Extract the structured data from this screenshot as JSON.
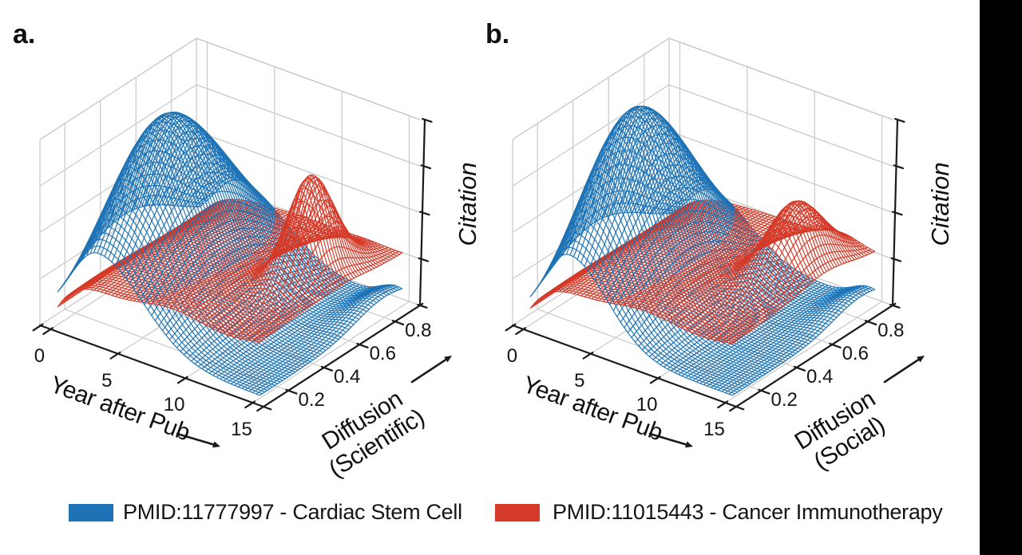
{
  "chart_data": {
    "type": "3d_wireframe_surface",
    "description": "Two 3D wireframe surface panels showing citation count versus year after publication and knowledge diffusion, for two papers (blue and red). Panel a uses scientific diffusion, panel b uses social diffusion. Z axis (Citation) has unlabeled ticks.",
    "legend_position": "bottom",
    "panels": [
      {
        "panel_label": "a.",
        "x_axis": {
          "label": "Year after Pub",
          "tick_labels": [
            "0",
            "5",
            "10",
            "15"
          ],
          "tick_values": [
            0,
            5,
            10,
            15
          ],
          "range": [
            -0.8,
            15.8
          ]
        },
        "y_axis": {
          "label_line1": "Diffusion",
          "label_line2": "(Scientific)",
          "tick_labels": [
            "0.2",
            "0.4",
            "0.6",
            "0.8"
          ],
          "tick_values": [
            0.2,
            0.4,
            0.6,
            0.8
          ],
          "range": [
            0.06,
            0.94
          ]
        },
        "z_axis": {
          "label": "Citation",
          "n_ticks": 5,
          "normalized_range": [
            0,
            1
          ]
        },
        "surfaces": [
          {
            "series": "PMID:11777997 - Cardiac Stem Cell",
            "color_key": "blue",
            "peak_summary": "large smooth peak, height ~0.97 of axis, at year ~3-4 and diffusion ~0.47, broad shoulder decaying toward year 15; small bump ~0.10 near year 14.5, diffusion 0.8",
            "model": {
              "base": 0.015,
              "main": {
                "amp": 0.96,
                "t0": 3.0,
                "sigL": 2.1,
                "sigR": 3.3,
                "d0": 0.47,
                "sigD": 0.3
              },
              "bump": {
                "amp": 0.1,
                "t0": 14.6,
                "sigT": 1.2,
                "d0": 0.8,
                "sigD": 0.16
              }
            }
          },
          {
            "series": "PMID:11015443 - Cancer Immunotherapy",
            "color_key": "red",
            "peak_summary": "low plateau ~0.28 across the domain rising from zero near year 0, with a sharp narrow peak to ~0.8 at year ~12.4, diffusion ~0.58",
            "model": {
              "plateau": {
                "height": 0.27,
                "rise": 1.6,
                "domeAmp": 0.18,
                "domeD": 0.45,
                "domeSig": 0.3,
                "waveAmp": 0.06
              },
              "peak": {
                "amp": 0.5,
                "t0": 12.4,
                "sigT": 1.0,
                "d0": 0.58,
                "sigD": 0.11
              }
            }
          }
        ]
      },
      {
        "panel_label": "b.",
        "x_axis": {
          "label": "Year after Pub",
          "tick_labels": [
            "0",
            "5",
            "10",
            "15"
          ],
          "tick_values": [
            0,
            5,
            10,
            15
          ],
          "range": [
            -0.8,
            15.8
          ]
        },
        "y_axis": {
          "label_line1": "Diffusion",
          "label_line2": "(Social)",
          "tick_labels": [
            "0.2",
            "0.4",
            "0.6",
            "0.8"
          ],
          "tick_values": [
            0.2,
            0.4,
            0.6,
            0.8
          ],
          "range": [
            0.06,
            0.94
          ]
        },
        "z_axis": {
          "label": "Citation",
          "n_ticks": 5,
          "normalized_range": [
            0,
            1
          ]
        },
        "surfaces": [
          {
            "series": "PMID:11777997 - Cardiac Stem Cell",
            "color_key": "blue",
            "peak_summary": "large smooth peak, height ~1.0 of axis, at year ~3 and diffusion ~0.46, slightly narrower than panel a; small bump ~0.09 near year 14.5, diffusion 0.82",
            "model": {
              "base": 0.015,
              "main": {
                "amp": 1.0,
                "t0": 2.9,
                "sigL": 1.9,
                "sigR": 2.8,
                "d0": 0.46,
                "sigD": 0.28
              },
              "bump": {
                "amp": 0.09,
                "t0": 14.6,
                "sigT": 1.2,
                "d0": 0.82,
                "sigD": 0.15
              }
            }
          },
          {
            "series": "PMID:11015443 - Cancer Immunotherapy",
            "color_key": "red",
            "peak_summary": "low plateau ~0.28 with a smaller broader peak to ~0.62 at year ~12.6, diffusion ~0.63",
            "model": {
              "plateau": {
                "height": 0.27,
                "rise": 1.7,
                "domeAmp": 0.15,
                "domeD": 0.5,
                "domeSig": 0.3,
                "waveAmp": 0.05
              },
              "peak": {
                "amp": 0.34,
                "t0": 12.6,
                "sigT": 1.25,
                "d0": 0.63,
                "sigD": 0.135
              }
            }
          }
        ]
      }
    ],
    "mesh": {
      "t_min": 0,
      "t_max": 15,
      "d_min": 0.1,
      "d_max": 0.9,
      "cells": 56
    }
  },
  "legend": [
    {
      "label": "PMID:11777997 - Cardiac Stem Cell",
      "color": "#1d73b5"
    },
    {
      "label": "PMID:11015443 - Cancer Immunotherapy",
      "color": "#d53a28"
    }
  ],
  "colors": {
    "blue": "#1d73b5",
    "red": "#d53a28",
    "grid": "#c8c8c8",
    "axis": "#1a1a1a",
    "background": "#ffffff",
    "right_bar": "#000000"
  }
}
